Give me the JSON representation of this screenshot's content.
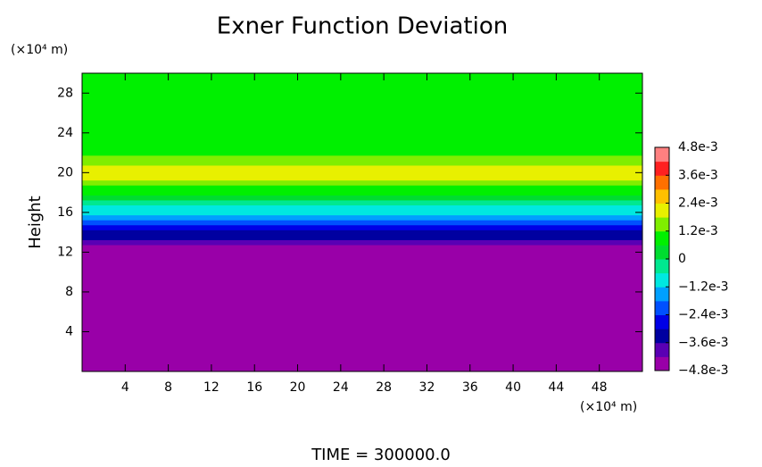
{
  "chart_data": {
    "type": "heatmap",
    "title": "Exner Function Deviation",
    "y_label": "Height",
    "y_unit": "(×10⁴ m)",
    "x_unit": "(×10⁴ m)",
    "annotation": "TIME = 300000.0",
    "xlim": [
      0,
      52
    ],
    "xticks": [
      4,
      8,
      12,
      16,
      20,
      24,
      28,
      32,
      36,
      40,
      44,
      48
    ],
    "ylim": [
      0,
      30
    ],
    "yticks": [
      4,
      8,
      12,
      16,
      20,
      24,
      28
    ],
    "y": [
      0,
      12,
      12.5,
      13,
      13.5,
      14,
      14.5,
      15,
      15.5,
      16,
      16.5,
      17,
      17.5,
      18,
      18.5,
      19,
      19.5,
      20,
      20.5,
      21,
      21.5,
      22,
      23,
      24,
      26,
      28,
      30
    ],
    "values": [
      -0.0046,
      -0.0046,
      -0.0044,
      -0.0039,
      -0.0035,
      -0.003,
      -0.0025,
      -0.002,
      -0.0016,
      -0.0012,
      -0.0007,
      -0.0003,
      0.0002,
      0.0006,
      0.001,
      0.0014,
      0.0018,
      0.002,
      0.0018,
      0.0015,
      0.0012,
      0.001,
      0.0009,
      0.00085,
      0.0008,
      0.0008,
      0.0008
    ],
    "colorbar": {
      "lim": [
        -0.0048,
        0.0048
      ],
      "ticks": [
        {
          "value": 0.0048,
          "label": "4.8e-3"
        },
        {
          "value": 0.0036,
          "label": "3.6e-3"
        },
        {
          "value": 0.0024,
          "label": "2.4e-3"
        },
        {
          "value": 0.0012,
          "label": "1.2e-3"
        },
        0,
        {
          "value": -0.0012,
          "label": "−1.2e-3"
        },
        {
          "value": -0.0024,
          "label": "−2.4e-3"
        },
        {
          "value": -0.0036,
          "label": "−3.6e-3"
        },
        {
          "value": -0.0048,
          "label": "−4.8e-3"
        }
      ],
      "colors": [
        "#9900a8",
        "#5a00b4",
        "#0000a0",
        "#0000e6",
        "#0050ff",
        "#00a0ff",
        "#00e8e0",
        "#00e890",
        "#00dd30",
        "#00f000",
        "#80ee00",
        "#e8f000",
        "#ffc000",
        "#ff7000",
        "#ff2020",
        "#ff8080"
      ]
    }
  }
}
